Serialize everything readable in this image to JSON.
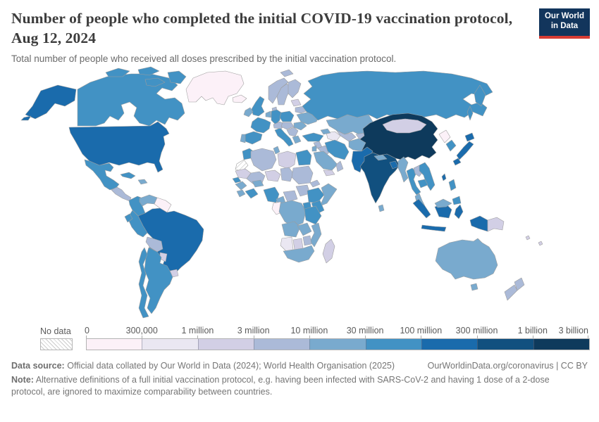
{
  "header": {
    "title": "Number of people who completed the initial COVID-19 vaccination protocol, Aug 12, 2024",
    "subtitle": "Total number of people who received all doses prescribed by the initial vaccination protocol."
  },
  "logo": {
    "line1": "Our World",
    "line2": "in Data",
    "bg_color": "#12355c",
    "accent_color": "#d73c34"
  },
  "legend": {
    "no_data_label": "No data",
    "tick_labels": [
      "0",
      "300,000",
      "1 million",
      "3 million",
      "10 million",
      "30 million",
      "100 million",
      "300 million",
      "1 billion",
      "3 billion"
    ]
  },
  "footer": {
    "data_source_label": "Data source:",
    "data_source": "Official data collated by Our World in Data (2024); World Health Organisation (2025)",
    "link": "OurWorldinData.org/coronavirus | CC BY",
    "note_label": "Note:",
    "note": "Alternative definitions of a full initial vaccination protocol, e.g. having been infected with SARS-CoV-2 and having 1 dose of a 2-dose protocol, are ignored to maximize comparability between countries."
  },
  "chart_data": {
    "type": "heatmap",
    "subtype": "world-choropleth",
    "title": "Number of people who completed the initial COVID-19 vaccination protocol",
    "date": "Aug 12, 2024",
    "unit": "people",
    "scale": "log-binned",
    "legend_position": "bottom",
    "bins": [
      {
        "range": "0 – 300,000",
        "color": "#fcf1f8"
      },
      {
        "range": "300,000 – 1 million",
        "color": "#eae7f2"
      },
      {
        "range": "1 million – 3 million",
        "color": "#d2cfe5"
      },
      {
        "range": "3 million – 10 million",
        "color": "#abbad8"
      },
      {
        "range": "10 million – 30 million",
        "color": "#79aace"
      },
      {
        "range": "30 million – 100 million",
        "color": "#4292c4"
      },
      {
        "range": "100 million – 300 million",
        "color": "#1a6bac"
      },
      {
        "range": "300 million – 1 billion",
        "color": "#11507f"
      },
      {
        "range": "1 billion – 3 billion",
        "color": "#0e3a5c"
      }
    ],
    "no_data": {
      "label": "No data",
      "pattern": "diagonal-hatch"
    },
    "countries": {
      "China": "1 billion–3 billion",
      "India": "300 million–1 billion",
      "United States": "100 million–300 million",
      "Brazil": "100 million–300 million",
      "Indonesia": "100 million–300 million",
      "Pakistan": "100 million–300 million",
      "Bangladesh": "100 million–300 million",
      "Japan": "100 million–300 million",
      "Taiwan": "100 million–300 million",
      "Russia": "30 million–100 million",
      "Mexico": "30 million–100 million",
      "Vietnam": "30 million–100 million",
      "Germany": "30 million–100 million",
      "France": "30 million–100 million",
      "United Kingdom": "30 million–100 million",
      "Italy": "30 million–100 million",
      "Spain": "30 million–100 million",
      "Poland": "30 million–100 million",
      "Turkey": "30 million–100 million",
      "Iran": "30 million–100 million",
      "Thailand": "30 million–100 million",
      "South Korea": "30 million–100 million",
      "Philippines": "30 million–100 million",
      "Egypt": "30 million–100 million",
      "Ethiopia": "30 million–100 million",
      "Nigeria": "30 million–100 million",
      "Canada": "30 million–100 million",
      "Colombia": "30 million–100 million",
      "Peru": "30 million–100 million",
      "Argentina": "30 million–100 million",
      "Chile": "30 million–100 million",
      "Cuba": "30 million–100 million",
      "Morocco": "30 million–100 million",
      "Tanzania": "30 million–100 million",
      "Kenya": "30 million–100 million",
      "Uganda": "30 million–100 million",
      "Ghana": "30 million–100 million",
      "Senegal": "30 million–100 million",
      "Ecuador": "30 million–100 million",
      "Cambodia": "30 million–100 million",
      "Australia": "10 million–30 million",
      "Saudi Arabia": "10 million–30 million",
      "Kazakhstan": "10 million–30 million",
      "Malaysia": "10 million–30 million",
      "Venezuela": "10 million–30 million",
      "Ukraine": "10 million–30 million",
      "South Africa": "10 million–30 million",
      "Afghanistan": "10 million–30 million",
      "Myanmar": "10 million–30 million",
      "Sri Lanka": "10 million–30 million",
      "Nepal": "10 million–30 million",
      "Romania": "10 million–30 million",
      "Greece": "10 million–30 million",
      "Portugal": "10 million–30 million",
      "Netherlands": "10 million–30 million",
      "Angola": "10 million–30 million",
      "DR Congo": "10 million–30 million",
      "Mozambique": "10 million–30 million",
      "Zambia": "10 million–30 million",
      "Somalia": "10 million–30 million",
      "Dominican Republic": "10 million–30 million",
      "Tunisia": "10 million–30 million",
      "Cameroon": "10 million–30 million",
      "New Zealand": "3 million–10 million",
      "Bolivia": "3 million–10 million",
      "Sudan": "3 million–10 million",
      "South Sudan": "3 million–10 million",
      "Algeria": "3 million–10 million",
      "Norway": "3 million–10 million",
      "Sweden": "3 million–10 million",
      "Finland": "3 million–10 million",
      "Denmark": "3 million–10 million",
      "Iraq": "3 million–10 million",
      "Syria": "3 million–10 million",
      "Oman": "3 million–10 million",
      "Uzbekistan": "3 million–10 million",
      "Laos": "3 million–10 million",
      "Mali": "3 million–10 million",
      "Chad": "3 million–10 million",
      "Belarus": "3 million–10 million",
      "Zimbabwe": "3 million–10 million",
      "Mongolia": "1 million–3 million",
      "Libya": "1 million–3 million",
      "Madagascar": "1 million–3 million",
      "Paraguay": "1 million–3 million",
      "Uruguay": "1 million–3 million",
      "Botswana": "1 million–3 million",
      "Papua New Guinea": "1 million–3 million",
      "Yemen": "1 million–3 million",
      "Niger": "1 million–3 million",
      "Mauritania": "1 million–3 million",
      "Namibia": "300,000–1 million",
      "Turkmenistan": "300,000–1 million",
      "Greenland": "0–300,000",
      "Iceland": "0–300,000",
      "Gabon": "0–300,000",
      "Guyana": "0–300,000",
      "North Korea": "0–300,000",
      "Western Sahara": "No data"
    }
  },
  "map": {
    "stroke_color": "#9d9d9d",
    "ocean_color": "#ffffff",
    "regions": {
      "canada": 5,
      "canada-islands": 5,
      "alaska": 6,
      "greenland": 0,
      "iceland": 0,
      "usa": 6,
      "mexico": 5,
      "central-america": 3,
      "cuba": 5,
      "hispaniola": 4,
      "colombia": 5,
      "venezuela": 4,
      "guyanas": 0,
      "brazil": 6,
      "peru": 5,
      "ecuador": 5,
      "bolivia": 3,
      "paraguay": 2,
      "uruguay": 2,
      "argentina": 5,
      "chile": 5,
      "uk": 5,
      "ireland": 4,
      "norway": 3,
      "sweden": 3,
      "finland": 3,
      "denmark": 3,
      "netherlands-belgium": 4,
      "germany": 5,
      "france": 5,
      "spain": 5,
      "portugal": 4,
      "italy": 5,
      "switzerland-austria": 3,
      "poland": 5,
      "czech-hungary": 3,
      "balkans": 3,
      "greece": 4,
      "romania": 4,
      "ukraine": 4,
      "belarus": 3,
      "baltics": 2,
      "svalbard": 3,
      "russia": 5,
      "kamchatka": 5,
      "sakhalin": 5,
      "kazakhstan": 4,
      "turkmenistan": 1,
      "uzbekistan": 3,
      "kyrgyzstan": 3,
      "caucasus": 4,
      "turkey": 5,
      "syria": 3,
      "iraq": 3,
      "iran": 5,
      "saudi": 4,
      "yemen": 2,
      "oman": 3,
      "israel-jordan": 4,
      "afghanistan": 4,
      "pakistan": 6,
      "india": 7,
      "sri-lanka": 4,
      "nepal": 4,
      "bangladesh": 6,
      "myanmar": 4,
      "thailand": 5,
      "laos": 3,
      "vietnam": 5,
      "cambodia": 5,
      "malaysia": 4,
      "china": 8,
      "mongolia": 2,
      "taiwan": 6,
      "north-korea": 0,
      "south-korea": 5,
      "japan": 6,
      "philippines": 5,
      "indonesia": 6,
      "borneo-malaysia": 4,
      "png": 2,
      "australia": 4,
      "tasmania": 4,
      "new-zealand": 3,
      "fiji-pacific": 2,
      "morocco": 5,
      "western-sahara": "no-data",
      "algeria": 3,
      "tunisia": 4,
      "libya": 2,
      "egypt": 5,
      "mauritania": 2,
      "mali": 3,
      "niger": 2,
      "chad": 3,
      "sudan": 3,
      "eritrea": 3,
      "senegal": 5,
      "guinea": 4,
      "sierra-liberia": 4,
      "ivory-ghana": 5,
      "burkina": 4,
      "nigeria": 5,
      "cameroon": 4,
      "car": 3,
      "south-sudan": 3,
      "ethiopia": 5,
      "somalia": 4,
      "uganda": 5,
      "kenya": 5,
      "drc": 4,
      "gabon-congo": 0,
      "tanzania": 5,
      "angola": 4,
      "zambia": 4,
      "mozambique": 4,
      "zimbabwe": 3,
      "namibia": 1,
      "botswana": 2,
      "south-africa": 4,
      "madagascar": 2
    }
  }
}
